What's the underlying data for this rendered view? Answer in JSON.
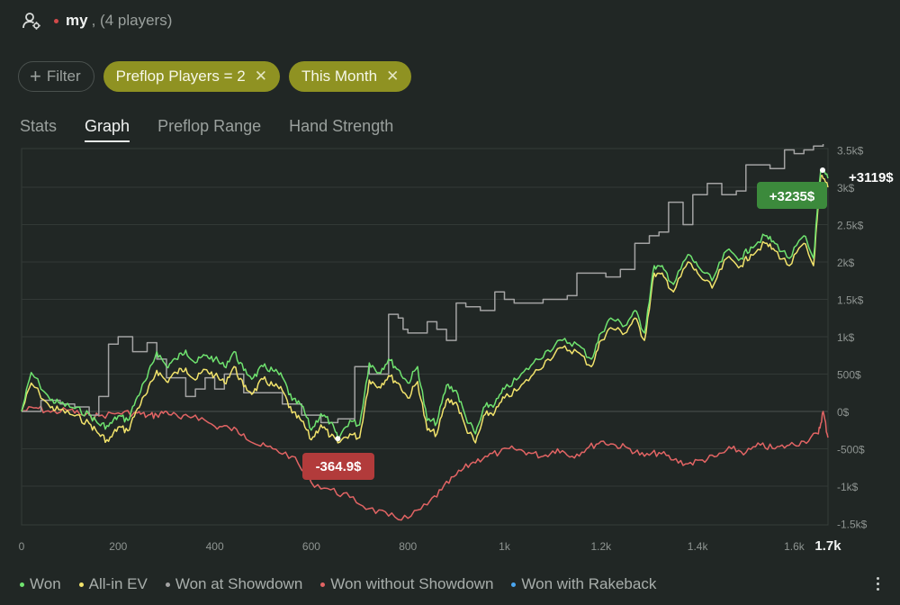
{
  "header": {
    "session_name": "my",
    "separator": ",",
    "players_text": "(4 players)"
  },
  "filters": {
    "add_label": "Filter",
    "active": [
      "Preflop Players = 2",
      "This Month"
    ]
  },
  "tabs": [
    "Stats",
    "Graph",
    "Preflop Range",
    "Hand Strength"
  ],
  "active_tab": "Graph",
  "legend": [
    {
      "label": "Won",
      "color": "#6fe36f"
    },
    {
      "label": "All-in EV",
      "color": "#f2e36b"
    },
    {
      "label": "Won at Showdown",
      "color": "#a3a3a3"
    },
    {
      "label": "Won without Showdown",
      "color": "#e26464"
    },
    {
      "label": "Won with Rakeback",
      "color": "#4aa6f0"
    }
  ],
  "icons": {
    "user": "user-settings-icon",
    "more": "more-vertical-icon"
  },
  "chart_data": {
    "type": "line",
    "x_ticks": [
      "0",
      "200",
      "400",
      "600",
      "800",
      "1k",
      "1.2k",
      "1.4k",
      "1.6k"
    ],
    "x_max_label": "1.7k",
    "y_ticks": [
      "3.5k$",
      "3k$",
      "2.5k$",
      "2k$",
      "1.5k$",
      "1k$",
      "500$",
      "0$",
      "-500$",
      "-1k$",
      "-1.5k$"
    ],
    "xlim": [
      0,
      1670
    ],
    "ylim": [
      -1500,
      3500
    ],
    "callouts": {
      "max": {
        "text": "+3235$",
        "x": 1655,
        "y": 3235,
        "color": "#3c8a3c"
      },
      "min": {
        "text": "-364.9$",
        "x": 655,
        "y": -364.9,
        "color": "#b23b3b"
      },
      "end": {
        "text": "+3119$",
        "x": 1670,
        "y": 3119
      }
    },
    "series": [
      {
        "name": "Won",
        "color": "#6fe36f",
        "x": [
          0,
          20,
          60,
          80,
          110,
          140,
          160,
          180,
          200,
          220,
          240,
          260,
          280,
          300,
          320,
          340,
          360,
          380,
          400,
          420,
          440,
          460,
          480,
          500,
          520,
          540,
          560,
          580,
          600,
          620,
          640,
          655,
          680,
          700,
          720,
          740,
          760,
          780,
          800,
          820,
          840,
          860,
          880,
          900,
          920,
          940,
          960,
          980,
          1000,
          1030,
          1060,
          1090,
          1120,
          1150,
          1180,
          1200,
          1220,
          1250,
          1270,
          1290,
          1310,
          1330,
          1350,
          1380,
          1400,
          1430,
          1460,
          1490,
          1510,
          1540,
          1560,
          1590,
          1620,
          1640,
          1655,
          1670
        ],
        "y": [
          0,
          520,
          150,
          110,
          40,
          -40,
          -170,
          -200,
          -60,
          -120,
          200,
          450,
          800,
          600,
          700,
          820,
          650,
          750,
          700,
          600,
          800,
          550,
          450,
          600,
          550,
          460,
          150,
          80,
          -250,
          -30,
          -150,
          -364.9,
          -120,
          -180,
          650,
          520,
          700,
          560,
          380,
          600,
          -120,
          -150,
          350,
          280,
          -80,
          -300,
          70,
          100,
          300,
          450,
          650,
          820,
          950,
          900,
          700,
          1050,
          1250,
          1150,
          1350,
          1050,
          1950,
          1900,
          1700,
          2100,
          1950,
          1750,
          2150,
          2050,
          2200,
          2350,
          2250,
          2050,
          2350,
          2050,
          3235,
          3119
        ]
      },
      {
        "name": "All-in EV",
        "color": "#f2e36b",
        "x": [
          0,
          20,
          60,
          80,
          110,
          140,
          160,
          180,
          200,
          220,
          240,
          260,
          280,
          300,
          320,
          340,
          360,
          380,
          400,
          420,
          440,
          460,
          480,
          500,
          520,
          540,
          560,
          580,
          600,
          620,
          640,
          655,
          680,
          700,
          720,
          740,
          760,
          780,
          800,
          820,
          840,
          860,
          880,
          900,
          920,
          940,
          960,
          980,
          1000,
          1030,
          1060,
          1090,
          1120,
          1150,
          1180,
          1200,
          1220,
          1250,
          1270,
          1290,
          1310,
          1330,
          1350,
          1380,
          1400,
          1430,
          1460,
          1490,
          1510,
          1540,
          1560,
          1590,
          1620,
          1640,
          1655,
          1670
        ],
        "y": [
          0,
          380,
          50,
          20,
          -60,
          -160,
          -300,
          -400,
          -210,
          -260,
          40,
          250,
          550,
          400,
          520,
          580,
          420,
          560,
          480,
          380,
          600,
          330,
          250,
          430,
          350,
          280,
          -20,
          -130,
          -380,
          -180,
          -330,
          -420,
          -300,
          -350,
          420,
          330,
          480,
          380,
          180,
          400,
          -250,
          -300,
          150,
          120,
          -220,
          -420,
          -40,
          -10,
          180,
          300,
          500,
          700,
          850,
          800,
          600,
          950,
          1120,
          1050,
          1250,
          950,
          1850,
          1800,
          1600,
          2000,
          1850,
          1650,
          2050,
          1950,
          2100,
          2250,
          2150,
          1950,
          2250,
          1950,
          3150,
          3000
        ]
      },
      {
        "name": "Won at Showdown",
        "color": "#a3a3a3",
        "x": [
          0,
          40,
          80,
          110,
          140,
          160,
          180,
          200,
          230,
          260,
          280,
          300,
          340,
          360,
          380,
          400,
          420,
          460,
          500,
          540,
          580,
          620,
          655,
          690,
          720,
          760,
          780,
          790,
          800,
          840,
          860,
          880,
          900,
          920,
          950,
          980,
          1000,
          1020,
          1050,
          1080,
          1100,
          1130,
          1150,
          1180,
          1210,
          1240,
          1270,
          1300,
          1320,
          1340,
          1370,
          1390,
          1420,
          1450,
          1480,
          1500,
          1530,
          1550,
          1580,
          1600,
          1620,
          1640,
          1650,
          1660,
          1670
        ],
        "y": [
          0,
          150,
          100,
          60,
          -50,
          200,
          900,
          1000,
          800,
          920,
          700,
          450,
          200,
          300,
          450,
          300,
          500,
          250,
          250,
          100,
          -50,
          -150,
          -100,
          600,
          500,
          1300,
          1250,
          1100,
          1050,
          1200,
          1100,
          950,
          1450,
          1400,
          1350,
          1600,
          1500,
          1450,
          1450,
          1500,
          1500,
          1550,
          1850,
          1850,
          1800,
          1900,
          2250,
          2350,
          2400,
          2800,
          2500,
          2900,
          3050,
          2900,
          2950,
          3300,
          3300,
          3250,
          3500,
          3450,
          3500,
          3550,
          3550,
          3600,
          3600
        ]
      },
      {
        "name": "Won without Showdown",
        "color": "#e26464",
        "x": [
          0,
          30,
          60,
          100,
          130,
          160,
          200,
          240,
          260,
          280,
          300,
          330,
          360,
          400,
          430,
          460,
          490,
          520,
          560,
          600,
          640,
          680,
          720,
          760,
          800,
          840,
          870,
          900,
          930,
          960,
          990,
          1020,
          1050,
          1080,
          1110,
          1140,
          1170,
          1200,
          1230,
          1260,
          1290,
          1320,
          1350,
          1380,
          1410,
          1440,
          1470,
          1500,
          1530,
          1560,
          1590,
          1620,
          1650,
          1660,
          1670
        ],
        "y": [
          0,
          50,
          -10,
          20,
          -60,
          -60,
          -20,
          -20,
          -60,
          -50,
          0,
          -100,
          -50,
          -200,
          -220,
          -300,
          -450,
          -500,
          -600,
          -950,
          -1050,
          -1150,
          -1300,
          -1400,
          -1430,
          -1250,
          -1050,
          -850,
          -700,
          -600,
          -550,
          -500,
          -550,
          -600,
          -500,
          -600,
          -500,
          -400,
          -450,
          -500,
          -600,
          -550,
          -650,
          -700,
          -650,
          -600,
          -500,
          -550,
          -450,
          -500,
          -450,
          -400,
          -300,
          0,
          -350
        ]
      }
    ]
  }
}
